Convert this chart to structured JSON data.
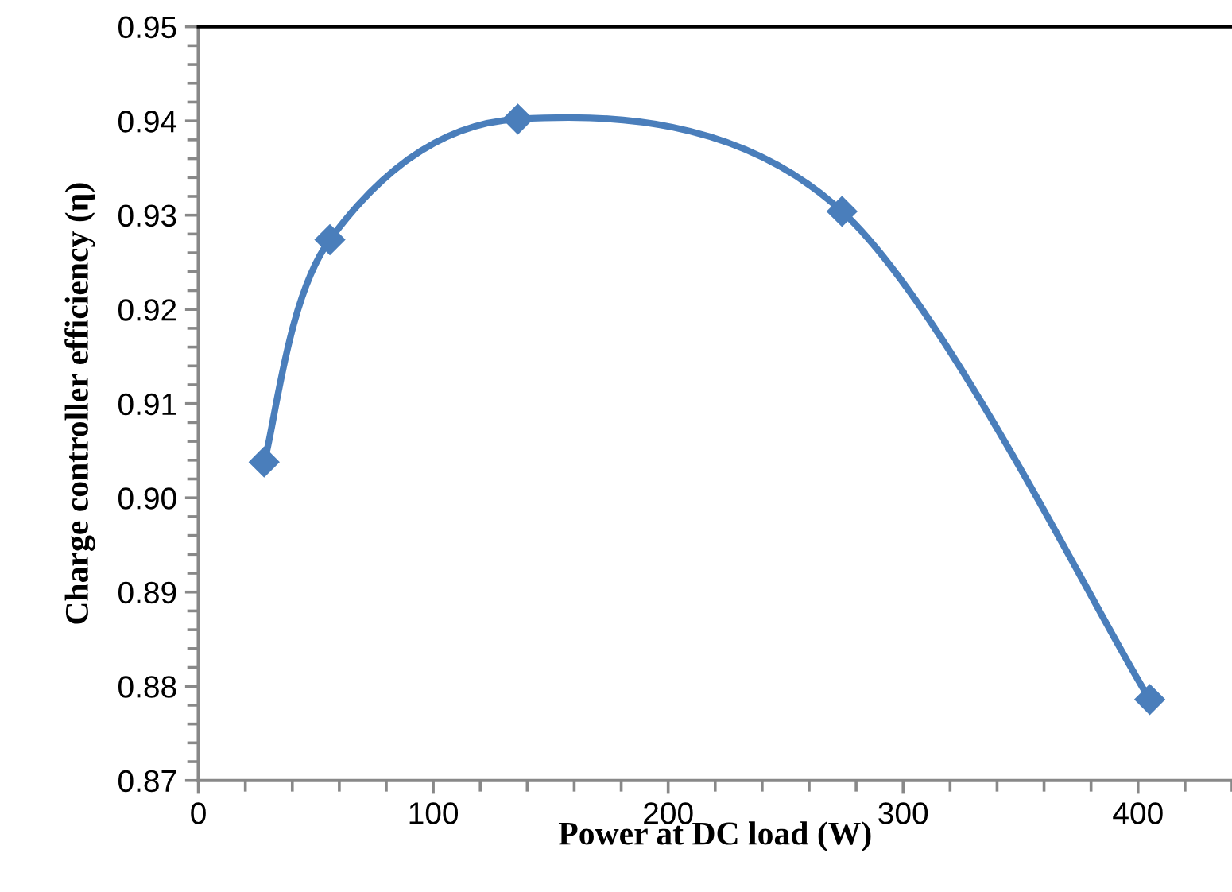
{
  "chart_data": {
    "type": "line",
    "xlabel": "Power at DC load (W)",
    "ylabel": "Charge controller efficiency (η)",
    "x": [
      28,
      56,
      136,
      274,
      405
    ],
    "series": [
      {
        "color": "#4a7ebb",
        "values": [
          0.9038,
          0.9274,
          0.9402,
          0.9304,
          0.8786
        ]
      }
    ],
    "xlim": [
      0,
      440
    ],
    "xticks": [
      0,
      100,
      200,
      300,
      400
    ],
    "ylim": [
      0.87,
      0.95
    ],
    "yticks": [
      {
        "value": 0.87,
        "label": "0.87"
      },
      {
        "value": 0.88,
        "label": "0.88"
      },
      {
        "value": 0.89,
        "label": "0.89"
      },
      {
        "value": 0.9,
        "label": "0.90"
      },
      {
        "value": 0.91,
        "label": "0.91"
      },
      {
        "value": 0.92,
        "label": "0.92"
      },
      {
        "value": 0.93,
        "label": "0.93"
      },
      {
        "value": 0.94,
        "label": "0.94"
      },
      {
        "value": 0.95,
        "label": "0.95"
      }
    ],
    "marker": "diamond",
    "line_style": "solid",
    "grid": false,
    "legend": false
  }
}
